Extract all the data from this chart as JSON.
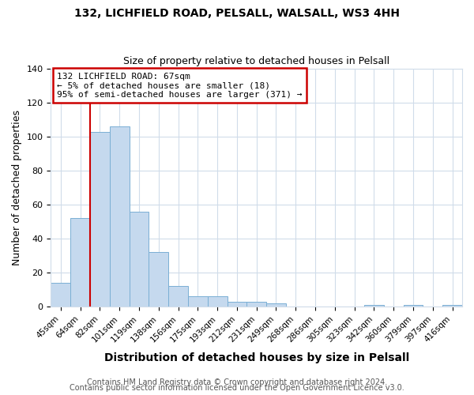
{
  "title1": "132, LICHFIELD ROAD, PELSALL, WALSALL, WS3 4HH",
  "title2": "Size of property relative to detached houses in Pelsall",
  "xlabel": "Distribution of detached houses by size in Pelsall",
  "ylabel": "Number of detached properties",
  "bar_labels": [
    "45sqm",
    "64sqm",
    "82sqm",
    "101sqm",
    "119sqm",
    "138sqm",
    "156sqm",
    "175sqm",
    "193sqm",
    "212sqm",
    "231sqm",
    "249sqm",
    "268sqm",
    "286sqm",
    "305sqm",
    "323sqm",
    "342sqm",
    "360sqm",
    "379sqm",
    "397sqm",
    "416sqm"
  ],
  "bar_values": [
    14,
    52,
    103,
    106,
    56,
    32,
    12,
    6,
    6,
    3,
    3,
    2,
    0,
    0,
    0,
    0,
    1,
    0,
    1,
    0,
    1
  ],
  "bar_color": "#c5d9ee",
  "bar_edge_color": "#7aafd4",
  "ylim": [
    0,
    140
  ],
  "yticks": [
    0,
    20,
    40,
    60,
    80,
    100,
    120,
    140
  ],
  "vline_x": 1.5,
  "vline_color": "#cc0000",
  "annotation_title": "132 LICHFIELD ROAD: 67sqm",
  "annotation_line1": "← 5% of detached houses are smaller (18)",
  "annotation_line2": "95% of semi-detached houses are larger (371) →",
  "annotation_box_color": "#cc0000",
  "footer1": "Contains HM Land Registry data © Crown copyright and database right 2024.",
  "footer2": "Contains public sector information licensed under the Open Government Licence v3.0.",
  "bg_color": "#ffffff",
  "plot_bg_color": "#ffffff",
  "grid_color": "#d0dcea",
  "title1_fontsize": 10,
  "title2_fontsize": 9,
  "xlabel_fontsize": 10,
  "ylabel_fontsize": 9,
  "tick_fontsize": 7.5,
  "annot_fontsize": 8,
  "footer_fontsize": 7
}
